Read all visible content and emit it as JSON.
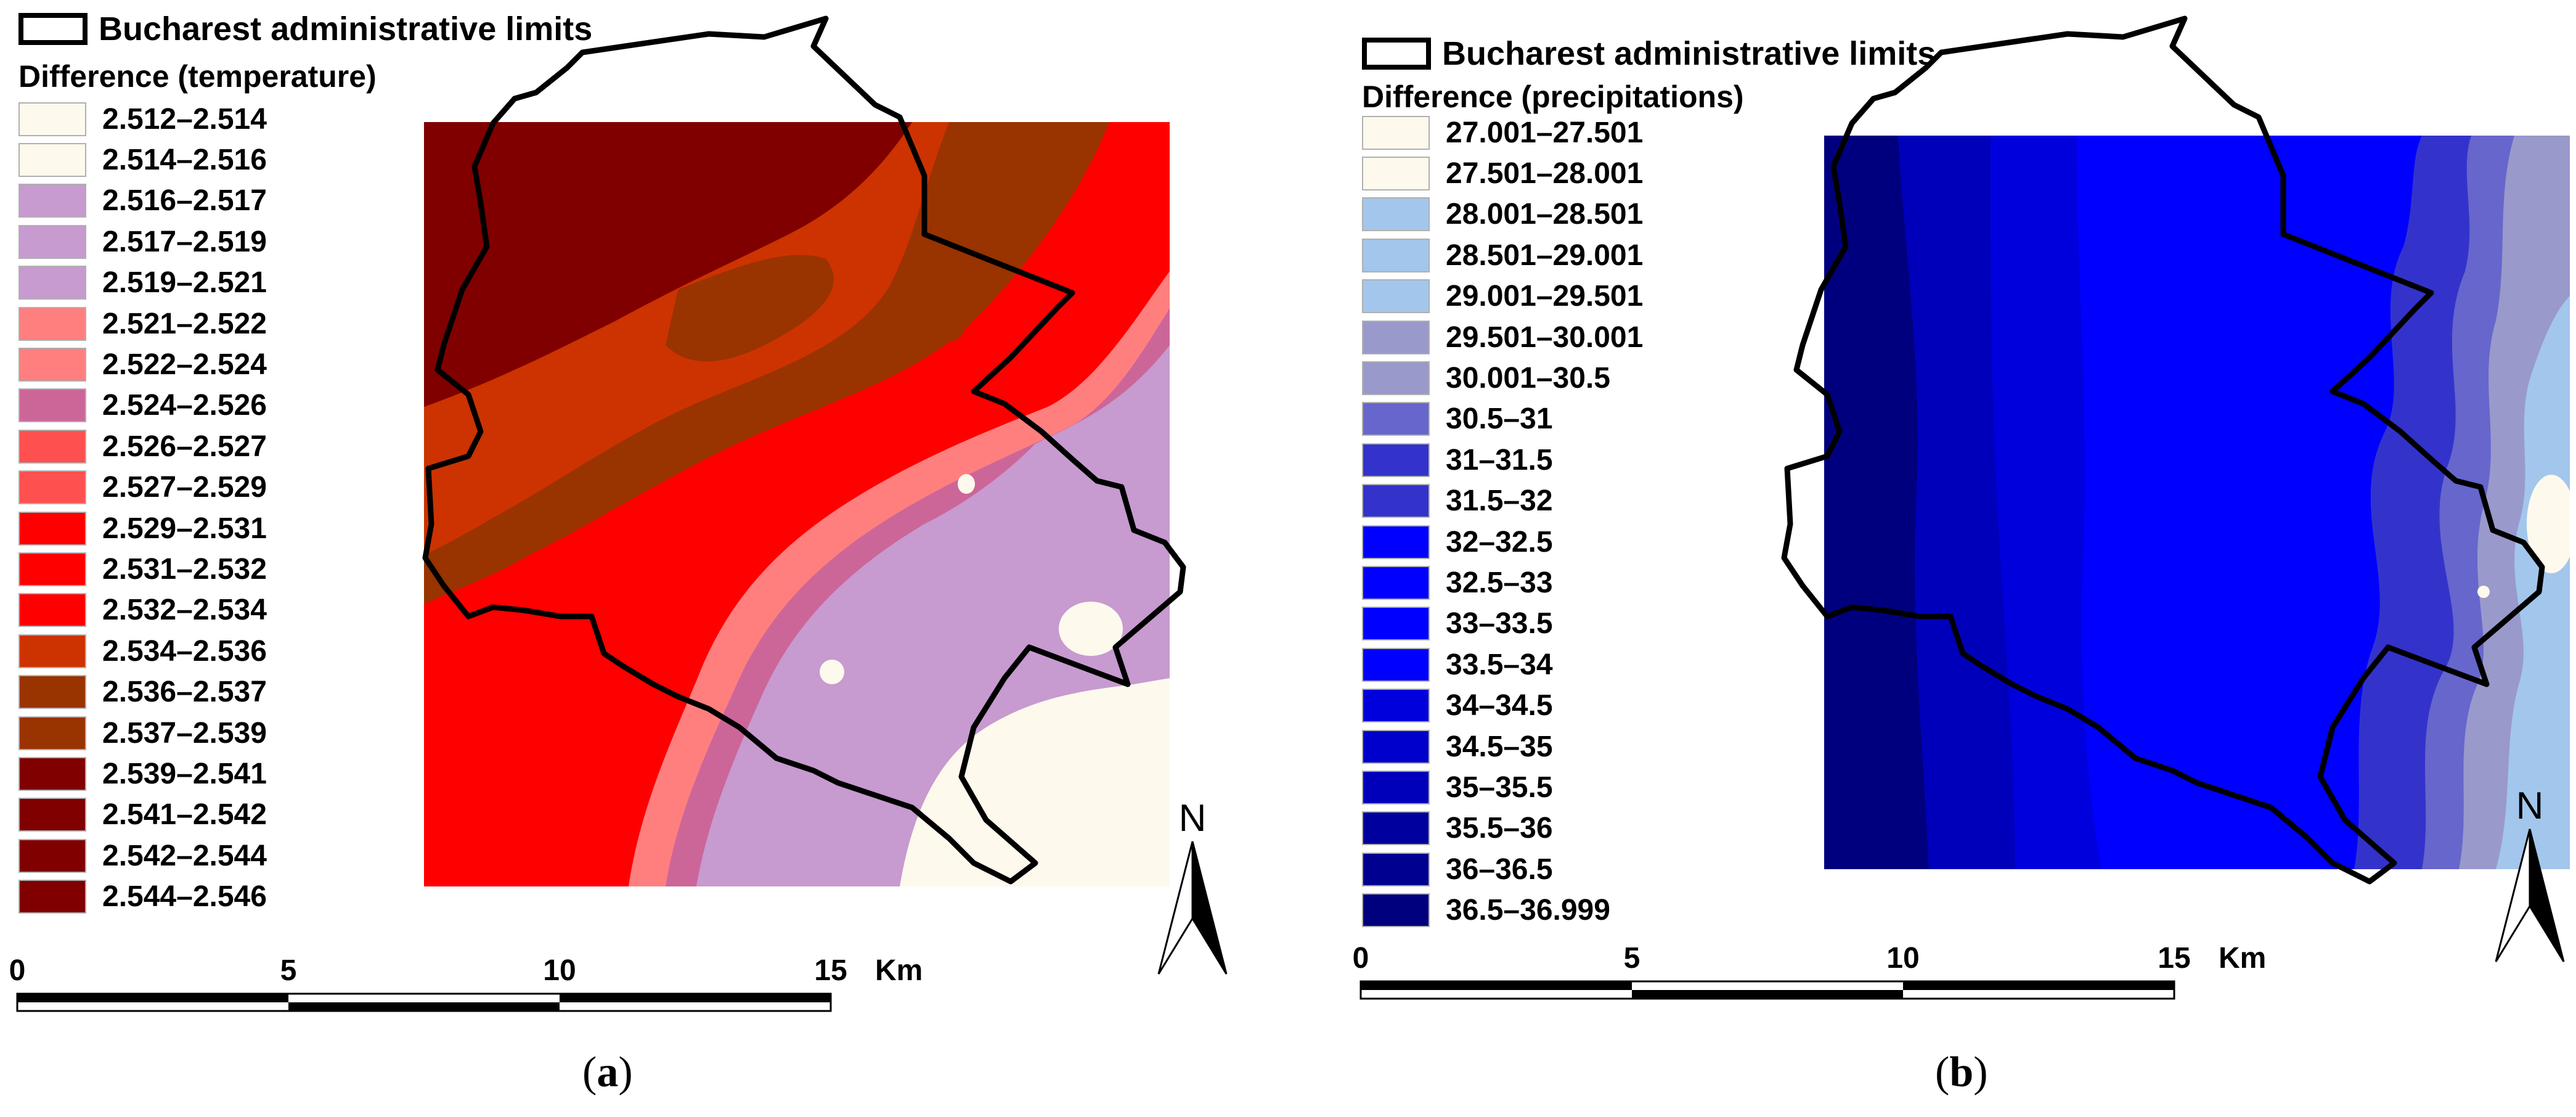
{
  "panels": [
    {
      "id": "a",
      "boundary_label": "Bucharest administrative limits",
      "legend_title": "Difference (temperature)",
      "classes": [
        {
          "label": "2.512–2.514",
          "color": "#fdf9ec"
        },
        {
          "label": "2.514–2.516",
          "color": "#fdf9ec"
        },
        {
          "label": "2.516–2.517",
          "color": "#c79ad0"
        },
        {
          "label": "2.517–2.519",
          "color": "#c79ad0"
        },
        {
          "label": "2.519–2.521",
          "color": "#c79ad0"
        },
        {
          "label": "2.521–2.522",
          "color": "#ff7f7f"
        },
        {
          "label": "2.522–2.524",
          "color": "#ff7f7f"
        },
        {
          "label": "2.524–2.526",
          "color": "#cc6699"
        },
        {
          "label": "2.526–2.527",
          "color": "#ff5050"
        },
        {
          "label": "2.527–2.529",
          "color": "#ff5050"
        },
        {
          "label": "2.529–2.531",
          "color": "#ff0000"
        },
        {
          "label": "2.531–2.532",
          "color": "#ff0000"
        },
        {
          "label": "2.532–2.534",
          "color": "#ff0000"
        },
        {
          "label": "2.534–2.536",
          "color": "#cc3300"
        },
        {
          "label": "2.536–2.537",
          "color": "#993300"
        },
        {
          "label": "2.537–2.539",
          "color": "#993300"
        },
        {
          "label": "2.539–2.541",
          "color": "#800000"
        },
        {
          "label": "2.541–2.542",
          "color": "#800000"
        },
        {
          "label": "2.542–2.544",
          "color": "#800000"
        },
        {
          "label": "2.544–2.546",
          "color": "#800000"
        }
      ],
      "scale": {
        "ticks": [
          "0",
          "5",
          "10",
          "15"
        ],
        "unit": "Km"
      },
      "north_label": "N",
      "caption_open": "(",
      "caption_letter": "a",
      "caption_close": ")"
    },
    {
      "id": "b",
      "boundary_label": "Bucharest administrative limits",
      "legend_title": "Difference (precipitations)",
      "classes": [
        {
          "label": "27.001–27.501",
          "color": "#fdf9ec"
        },
        {
          "label": "27.501–28.001",
          "color": "#fdf9ec"
        },
        {
          "label": "28.001–28.501",
          "color": "#a3c6ec"
        },
        {
          "label": "28.501–29.001",
          "color": "#a3c6ec"
        },
        {
          "label": "29.001–29.501",
          "color": "#a3c6ec"
        },
        {
          "label": "29.501–30.001",
          "color": "#9999cc"
        },
        {
          "label": "30.001–30.5",
          "color": "#9999cc"
        },
        {
          "label": "30.5–31",
          "color": "#6666cc"
        },
        {
          "label": "31–31.5",
          "color": "#3333cc"
        },
        {
          "label": "31.5–32",
          "color": "#3333cc"
        },
        {
          "label": "32–32.5",
          "color": "#0000ff"
        },
        {
          "label": "32.5–33",
          "color": "#0000ff"
        },
        {
          "label": "33–33.5",
          "color": "#0000ff"
        },
        {
          "label": "33.5–34",
          "color": "#0000ff"
        },
        {
          "label": "34–34.5",
          "color": "#0000dd"
        },
        {
          "label": "34.5–35",
          "color": "#0000cc"
        },
        {
          "label": "35–35.5",
          "color": "#0000bb"
        },
        {
          "label": "35.5–36",
          "color": "#00009e"
        },
        {
          "label": "36–36.5",
          "color": "#000090"
        },
        {
          "label": "36.5–36.999",
          "color": "#00007f"
        }
      ],
      "scale": {
        "ticks": [
          "0",
          "5",
          "10",
          "15"
        ],
        "unit": "Km"
      },
      "north_label": "N",
      "caption_open": "(",
      "caption_letter": "b",
      "caption_close": ")"
    }
  ]
}
